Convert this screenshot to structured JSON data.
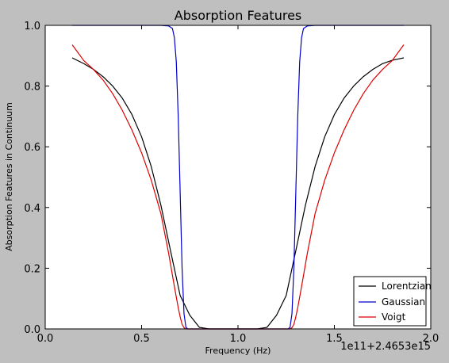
{
  "chart_data": {
    "type": "line",
    "title": "Absorption Features",
    "xlabel": "Frequency (Hz)",
    "ylabel": "Absorption Features in Continuum",
    "x_offset_label": "1e11+2.4653e15",
    "xlim": [
      0.0,
      2.0
    ],
    "ylim": [
      0.0,
      1.0
    ],
    "xticks": [
      0.0,
      0.5,
      1.0,
      1.5,
      2.0
    ],
    "xtick_labels": [
      "0.0",
      "0.5",
      "1.0",
      "1.5",
      "2.0"
    ],
    "yticks": [
      0.0,
      0.2,
      0.4,
      0.6,
      0.8,
      1.0
    ],
    "ytick_labels": [
      "0.0",
      "0.2",
      "0.4",
      "0.6",
      "0.8",
      "1.0"
    ],
    "grid": false,
    "legend_position": "bottom-right",
    "series": [
      {
        "name": "Lorentzian",
        "color": "#000000",
        "x": [
          0.14,
          0.2,
          0.25,
          0.3,
          0.35,
          0.4,
          0.45,
          0.5,
          0.55,
          0.6,
          0.65,
          0.7,
          0.75,
          0.8,
          0.85,
          0.9,
          0.95,
          1.0,
          1.05,
          1.1,
          1.15,
          1.2,
          1.25,
          1.3,
          1.35,
          1.4,
          1.45,
          1.5,
          1.55,
          1.6,
          1.65,
          1.7,
          1.75,
          1.8,
          1.86
        ],
        "values": [
          0.893,
          0.874,
          0.855,
          0.831,
          0.8,
          0.76,
          0.706,
          0.633,
          0.535,
          0.408,
          0.258,
          0.11,
          0.045,
          0.005,
          0.0,
          0.0,
          0.0,
          0.0,
          0.0,
          0.0,
          0.005,
          0.045,
          0.11,
          0.258,
          0.408,
          0.535,
          0.633,
          0.706,
          0.76,
          0.8,
          0.831,
          0.855,
          0.874,
          0.885,
          0.893
        ]
      },
      {
        "name": "Gaussian",
        "color": "#0000cc",
        "x": [
          0.14,
          0.3,
          0.5,
          0.6,
          0.64,
          0.66,
          0.67,
          0.68,
          0.69,
          0.7,
          0.71,
          0.72,
          0.73,
          0.74,
          1.26,
          1.27,
          1.28,
          1.29,
          1.3,
          1.31,
          1.32,
          1.33,
          1.34,
          1.36,
          1.4,
          1.6,
          1.86
        ],
        "values": [
          1.0,
          1.0,
          1.0,
          1.0,
          0.998,
          0.99,
          0.96,
          0.88,
          0.7,
          0.45,
          0.2,
          0.05,
          0.005,
          0.0,
          0.0,
          0.005,
          0.05,
          0.2,
          0.45,
          0.7,
          0.88,
          0.96,
          0.99,
          0.998,
          1.0,
          1.0,
          1.0
        ]
      },
      {
        "name": "Voigt",
        "color": "#dd0000",
        "x": [
          0.14,
          0.2,
          0.25,
          0.3,
          0.35,
          0.4,
          0.45,
          0.5,
          0.55,
          0.6,
          0.64,
          0.67,
          0.69,
          0.7,
          0.71,
          0.72,
          0.73,
          1.27,
          1.28,
          1.29,
          1.3,
          1.31,
          1.33,
          1.36,
          1.4,
          1.45,
          1.5,
          1.55,
          1.6,
          1.65,
          1.7,
          1.75,
          1.8,
          1.86
        ],
        "values": [
          0.936,
          0.884,
          0.855,
          0.82,
          0.775,
          0.72,
          0.655,
          0.58,
          0.49,
          0.38,
          0.25,
          0.14,
          0.07,
          0.04,
          0.015,
          0.004,
          0.0,
          0.0,
          0.004,
          0.015,
          0.04,
          0.07,
          0.14,
          0.25,
          0.38,
          0.49,
          0.58,
          0.655,
          0.72,
          0.775,
          0.82,
          0.855,
          0.884,
          0.936
        ]
      }
    ]
  }
}
